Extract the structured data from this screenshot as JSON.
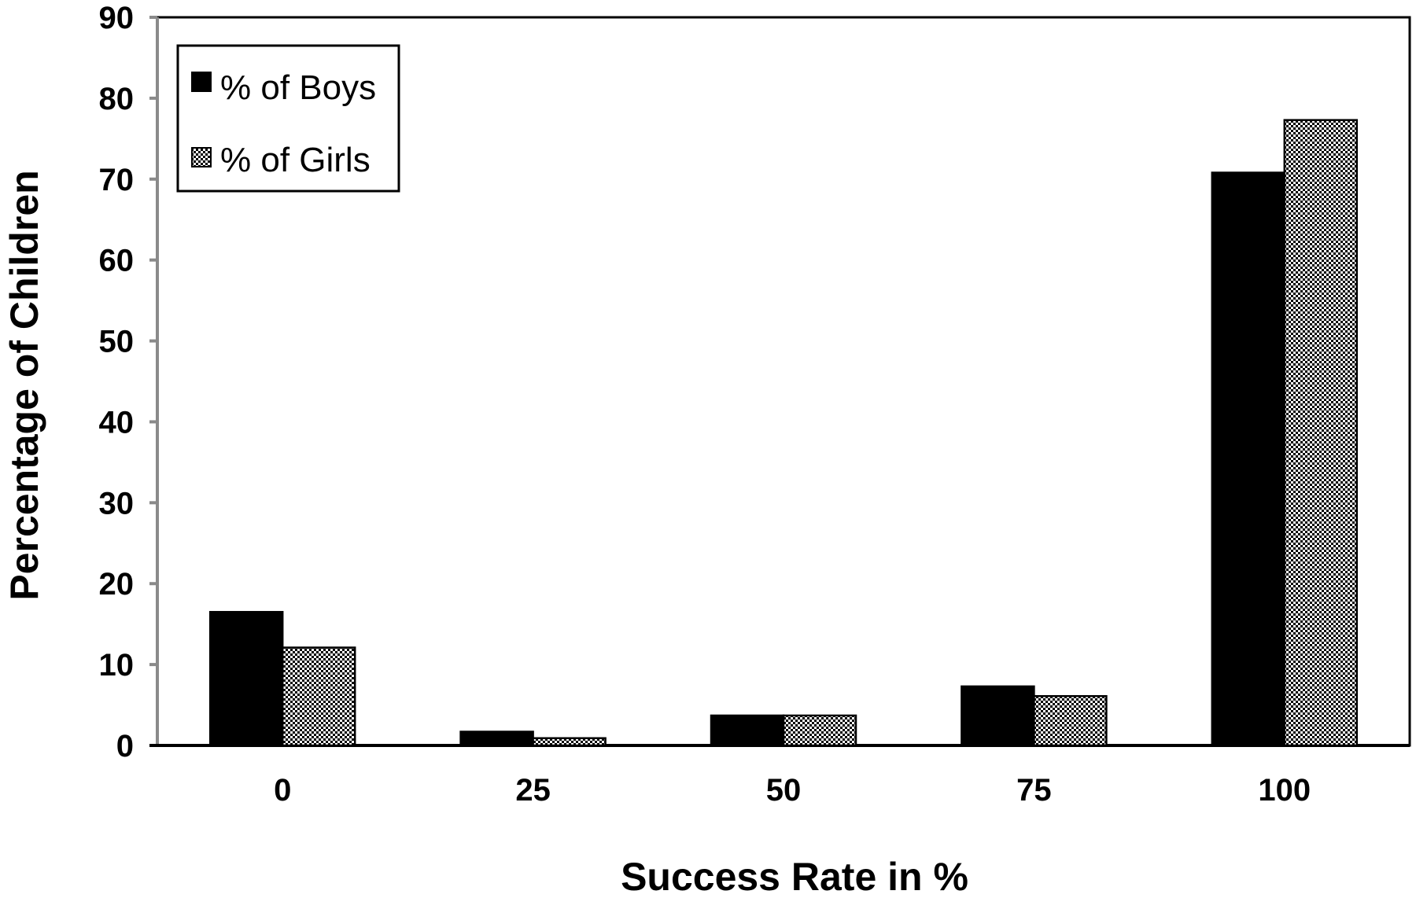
{
  "chart_data": {
    "type": "bar",
    "title": "",
    "xlabel": "Success Rate in %",
    "ylabel": "Percentage of Children",
    "categories": [
      "0",
      "25",
      "50",
      "75",
      "100"
    ],
    "series": [
      {
        "name": "% of Boys",
        "values": [
          16.5,
          1.7,
          3.7,
          7.3,
          70.8
        ],
        "color": "#000000",
        "pattern": "solid"
      },
      {
        "name": "% of Girls",
        "values": [
          12.1,
          0.9,
          3.7,
          6.1,
          77.3
        ],
        "color": "#000000",
        "pattern": "checker"
      }
    ],
    "ylim": [
      0,
      90
    ],
    "yticks": [
      0,
      10,
      20,
      30,
      40,
      50,
      60,
      70,
      80,
      90
    ],
    "grid": false,
    "legend_position": "top-left"
  }
}
